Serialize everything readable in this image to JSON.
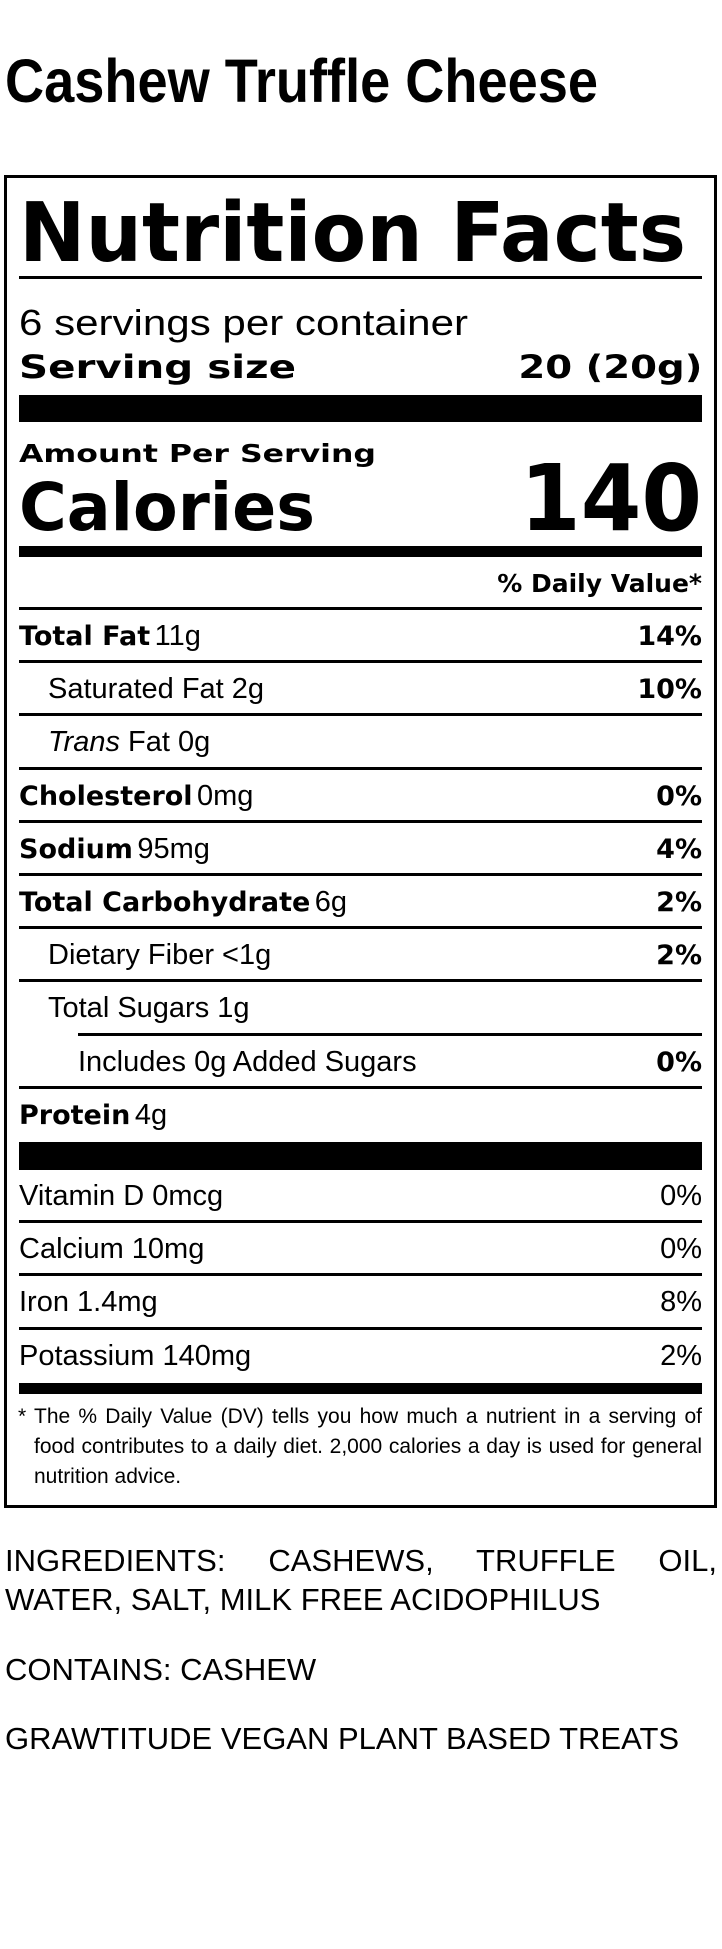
{
  "product_title": "Cashew Truffle Cheese",
  "label": {
    "heading": "Nutrition Facts",
    "servings_per_container": "6 servings per container",
    "serving_size_label": "Serving size",
    "serving_size_value": "20 (20g)",
    "amount_per_serving": "Amount Per Serving",
    "calories_label": "Calories",
    "calories_value": "140",
    "daily_value_header": "% Daily Value*",
    "nutrients": [
      {
        "name": "Total Fat",
        "amount": "11g",
        "dv": "14%"
      },
      {
        "name": "Saturated Fat 2g",
        "amount": "",
        "dv": "10%"
      },
      {
        "name_italic": "Trans",
        "name": "Fat 0g",
        "amount": "",
        "dv": ""
      },
      {
        "name": "Cholesterol",
        "amount": "0mg",
        "dv": "0%"
      },
      {
        "name": "Sodium",
        "amount": "95mg",
        "dv": "4%"
      },
      {
        "name": "Total Carbohydrate",
        "amount": "6g",
        "dv": "2%"
      },
      {
        "name": "Dietary Fiber <1g",
        "amount": "",
        "dv": "2%"
      },
      {
        "name": "Total Sugars 1g",
        "amount": "",
        "dv": ""
      },
      {
        "name": "Includes 0g Added Sugars",
        "amount": "",
        "dv": "0%"
      },
      {
        "name": "Protein",
        "amount": "4g",
        "dv": ""
      }
    ],
    "vitamins": [
      {
        "name": "Vitamin D 0mcg",
        "dv": "0%"
      },
      {
        "name": "Calcium 10mg",
        "dv": "0%"
      },
      {
        "name": "Iron 1.4mg",
        "dv": "8%"
      },
      {
        "name": "Potassium 140mg",
        "dv": "2%"
      }
    ],
    "footnote_marker": "*",
    "footnote": "The % Daily Value (DV) tells you how much a nutrient in a serving of food contributes to a daily diet. 2,000 calories a day is used for general nutrition advice."
  },
  "ingredients": "INGREDIENTS: CASHEWS, TRUFFLE OIL, WATER, SALT, MILK FREE ACIDOPHILUS",
  "contains": "CONTAINS: CASHEW",
  "brand_line": "GRAWTITUDE VEGAN PLANT BASED TREATS"
}
